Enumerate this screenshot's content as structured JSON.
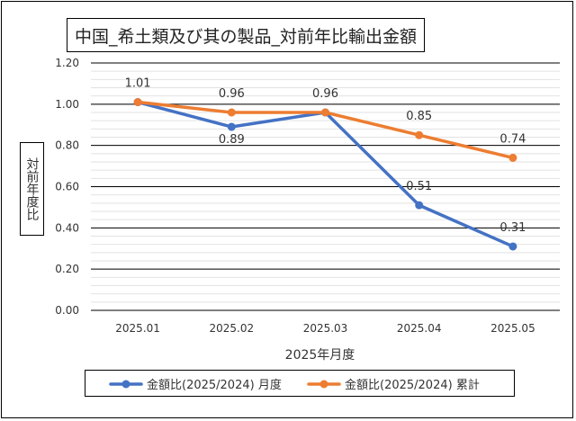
{
  "chart_data": {
    "type": "line",
    "title": "中国_希土類及び其の製品_対前年比輸出金額",
    "xlabel": "2025年月度",
    "ylabel": "対前年度比",
    "categories": [
      "2025.01",
      "2025.02",
      "2025.03",
      "2025.04",
      "2025.05"
    ],
    "ylim": [
      0,
      1.2
    ],
    "yticks": [
      "0.00",
      "0.20",
      "0.40",
      "0.60",
      "0.80",
      "1.00",
      "1.20"
    ],
    "grid": true,
    "legend_position": "bottom",
    "series": [
      {
        "name": "金額比(2025/2024) 月度",
        "color": "#4472c4",
        "values": [
          1.01,
          0.89,
          0.96,
          0.51,
          0.31
        ],
        "labels": [
          "1.01",
          "0.89",
          "0.96",
          "0.51",
          "0.31"
        ]
      },
      {
        "name": "金額比(2025/2024) 累計",
        "color": "#ed7d31",
        "values": [
          1.01,
          0.96,
          0.96,
          0.85,
          0.74
        ],
        "labels": [
          "1.01",
          "0.96",
          "0.96",
          "0.85",
          "0.74"
        ]
      }
    ]
  }
}
